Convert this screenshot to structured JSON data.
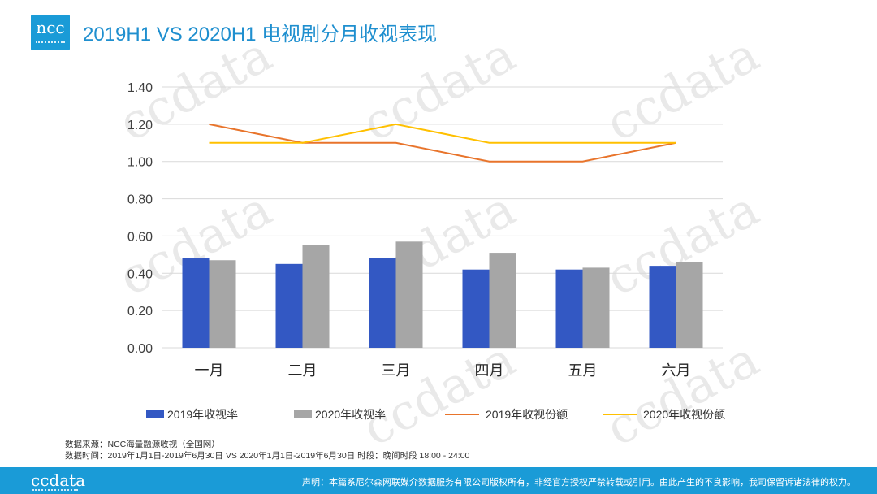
{
  "header": {
    "logo_text": "ncc",
    "title": "2019H1 VS 2020H1 电视剧分月收视表现"
  },
  "watermark": {
    "text": "ccdata"
  },
  "chart_data": {
    "type": "bar",
    "categories": [
      "一月",
      "二月",
      "三月",
      "四月",
      "五月",
      "六月"
    ],
    "series": [
      {
        "name": "2019年收视率",
        "type": "bar",
        "values": [
          0.48,
          0.45,
          0.48,
          0.42,
          0.42,
          0.44
        ]
      },
      {
        "name": "2020年收视率",
        "type": "bar",
        "values": [
          0.47,
          0.55,
          0.57,
          0.51,
          0.43,
          0.46
        ]
      },
      {
        "name": "2019年收视份额",
        "type": "line",
        "values": [
          1.2,
          1.1,
          1.1,
          1.0,
          1.0,
          1.1
        ]
      },
      {
        "name": "2020年收视份额",
        "type": "line",
        "values": [
          1.1,
          1.1,
          1.2,
          1.1,
          1.1,
          1.1
        ]
      }
    ],
    "colors": [
      "#3358c3",
      "#a6a6a6",
      "#e8742b",
      "#ffc000"
    ],
    "yticks": [
      "0.00",
      "0.20",
      "0.40",
      "0.60",
      "0.80",
      "1.00",
      "1.20",
      "1.40"
    ],
    "ylim": [
      0,
      1.4
    ],
    "grid": true,
    "legend_position": "bottom"
  },
  "notes": {
    "source": "数据来源：NCC海量融源收视（全国网）",
    "period": "数据时间：2019年1月1日-2019年6月30日 VS 2020年1月1日-2019年6月30日 时段：晚间时段 18:00 - 24:00"
  },
  "footer": {
    "brand": "ccdata",
    "statement": "声明：本篇系尼尔森网联媒介数据服务有限公司版权所有，非经官方授权严禁转载或引用。由此产生的不良影响，我司保留诉诸法律的权力。"
  }
}
